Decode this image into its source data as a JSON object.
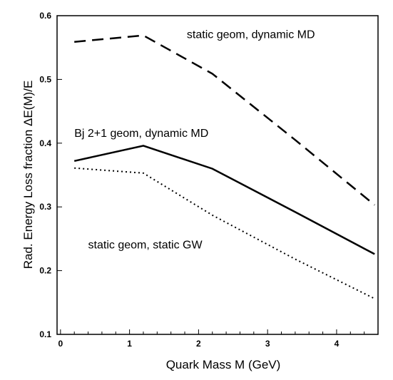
{
  "chart_data": {
    "type": "line",
    "xlabel": "Quark Mass M (GeV)",
    "ylabel": "Rad. Energy Loss fraction ΔE(M)/E",
    "xlim": [
      -0.05,
      4.6
    ],
    "ylim": [
      0.1,
      0.6
    ],
    "xticks": [
      0,
      1,
      2,
      3,
      4
    ],
    "yticks": [
      0.1,
      0.2,
      0.3,
      0.4,
      0.5,
      0.6
    ],
    "ytick_labels": [
      "0.1",
      "0.2",
      "0.3",
      "0.4",
      "0.5",
      "0.6"
    ],
    "grid": false,
    "series": [
      {
        "key": "dashed",
        "style": "dashed",
        "color": "#000000",
        "x": [
          0.2,
          1.2,
          2.2,
          3.4,
          4.55
        ],
        "y": [
          0.559,
          0.569,
          0.509,
          0.405,
          0.303
        ]
      },
      {
        "key": "solid",
        "style": "solid",
        "color": "#000000",
        "x": [
          0.2,
          1.2,
          2.2,
          3.4,
          4.55
        ],
        "y": [
          0.372,
          0.396,
          0.36,
          0.292,
          0.226
        ]
      },
      {
        "key": "dotted",
        "style": "dotted",
        "color": "#000000",
        "x": [
          0.2,
          1.2,
          2.2,
          3.4,
          4.55
        ],
        "y": [
          0.361,
          0.353,
          0.287,
          0.218,
          0.156
        ]
      }
    ],
    "annotations": [
      {
        "key": "dashed",
        "text": "static geom, dynamic MD",
        "x": 1.83,
        "y": 0.565
      },
      {
        "key": "solid",
        "text": "Bj 2+1 geom, dynamic MD",
        "x": 0.2,
        "y": 0.41
      },
      {
        "key": "dotted",
        "text": "static geom, static GW",
        "x": 0.4,
        "y": 0.235
      }
    ]
  }
}
